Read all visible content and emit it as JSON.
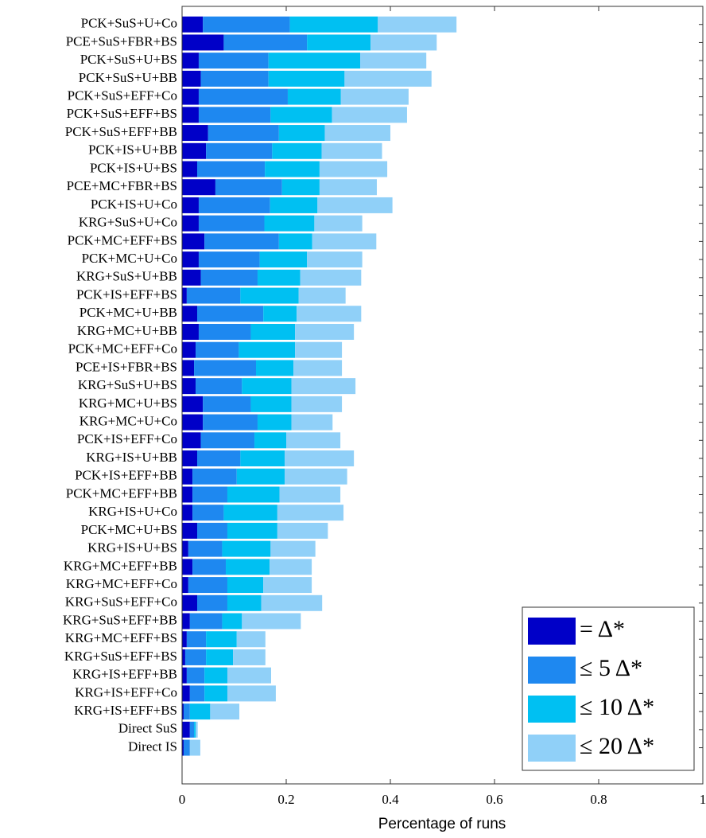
{
  "chart_data": {
    "type": "stacked-barh",
    "x_label": "Percentage of runs",
    "categories": [
      "PCK+SuS+U+Co",
      "PCE+SuS+FBR+BS",
      "PCK+SuS+U+BS",
      "PCK+SuS+U+BB",
      "PCK+SuS+EFF+Co",
      "PCK+SuS+EFF+BS",
      "PCK+SuS+EFF+BB",
      "PCK+IS+U+BB",
      "PCK+IS+U+BS",
      "PCE+MC+FBR+BS",
      "PCK+IS+U+Co",
      "KRG+SuS+U+Co",
      "PCK+MC+EFF+BS",
      "PCK+MC+U+Co",
      "KRG+SuS+U+BB",
      "PCK+IS+EFF+BS",
      "PCK+MC+U+BB",
      "KRG+MC+U+BB",
      "PCK+MC+EFF+Co",
      "PCE+IS+FBR+BS",
      "KRG+SuS+U+BS",
      "KRG+MC+U+BS",
      "KRG+MC+U+Co",
      "PCK+IS+EFF+Co",
      "KRG+IS+U+BB",
      "PCK+IS+EFF+BB",
      "PCK+MC+EFF+BB",
      "KRG+IS+U+Co",
      "PCK+MC+U+BS",
      "KRG+IS+U+BS",
      "KRG+MC+EFF+BB",
      "KRG+MC+EFF+Co",
      "KRG+SuS+EFF+Co",
      "KRG+SuS+EFF+BB",
      "KRG+MC+EFF+BS",
      "KRG+SuS+EFF+BS",
      "KRG+IS+EFF+BB",
      "KRG+IS+EFF+Co",
      "KRG+IS+EFF+BS",
      "Direct SuS",
      "Direct IS"
    ],
    "series": [
      {
        "name": "= Δ*",
        "color": "#0000c8",
        "values": [
          0.04,
          0.08,
          0.032,
          0.036,
          0.032,
          0.032,
          0.05,
          0.046,
          0.029,
          0.064,
          0.032,
          0.032,
          0.043,
          0.032,
          0.036,
          0.009,
          0.029,
          0.032,
          0.026,
          0.023,
          0.026,
          0.04,
          0.04,
          0.036,
          0.029,
          0.02,
          0.02,
          0.02,
          0.029,
          0.012,
          0.02,
          0.012,
          0.029,
          0.015,
          0.009,
          0.006,
          0.009,
          0.015,
          0.003,
          0.015,
          0.003
        ]
      },
      {
        "name": "≤ 5 Δ*",
        "color": "#1e88f0",
        "values": [
          0.167,
          0.16,
          0.134,
          0.13,
          0.171,
          0.138,
          0.136,
          0.127,
          0.13,
          0.128,
          0.137,
          0.126,
          0.143,
          0.117,
          0.109,
          0.103,
          0.127,
          0.1,
          0.083,
          0.119,
          0.089,
          0.092,
          0.105,
          0.103,
          0.083,
          0.085,
          0.067,
          0.06,
          0.058,
          0.065,
          0.064,
          0.075,
          0.058,
          0.062,
          0.037,
          0.04,
          0.034,
          0.028,
          0.012,
          0.008,
          0.012
        ]
      },
      {
        "name": "≤ 10 Δ*",
        "color": "#00c0f2",
        "values": [
          0.169,
          0.122,
          0.176,
          0.146,
          0.102,
          0.118,
          0.088,
          0.095,
          0.105,
          0.072,
          0.091,
          0.096,
          0.064,
          0.091,
          0.082,
          0.112,
          0.064,
          0.085,
          0.108,
          0.072,
          0.095,
          0.078,
          0.065,
          0.061,
          0.085,
          0.092,
          0.1,
          0.103,
          0.096,
          0.093,
          0.084,
          0.069,
          0.065,
          0.038,
          0.059,
          0.052,
          0.044,
          0.044,
          0.039,
          0.003,
          0
        ]
      },
      {
        "name": "≤ 20 Δ*",
        "color": "#90d0f8",
        "values": [
          0.151,
          0.127,
          0.127,
          0.167,
          0.13,
          0.144,
          0.126,
          0.116,
          0.13,
          0.11,
          0.144,
          0.092,
          0.123,
          0.106,
          0.117,
          0.09,
          0.124,
          0.113,
          0.09,
          0.093,
          0.123,
          0.097,
          0.079,
          0.104,
          0.133,
          0.12,
          0.117,
          0.127,
          0.097,
          0.086,
          0.081,
          0.093,
          0.117,
          0.113,
          0.055,
          0.062,
          0.084,
          0.093,
          0.056,
          0.004,
          0.02
        ]
      }
    ],
    "xlim": [
      0,
      1
    ],
    "xticks": [
      0,
      0.2,
      0.4,
      0.6,
      0.8,
      1
    ],
    "legend": "lower right"
  }
}
